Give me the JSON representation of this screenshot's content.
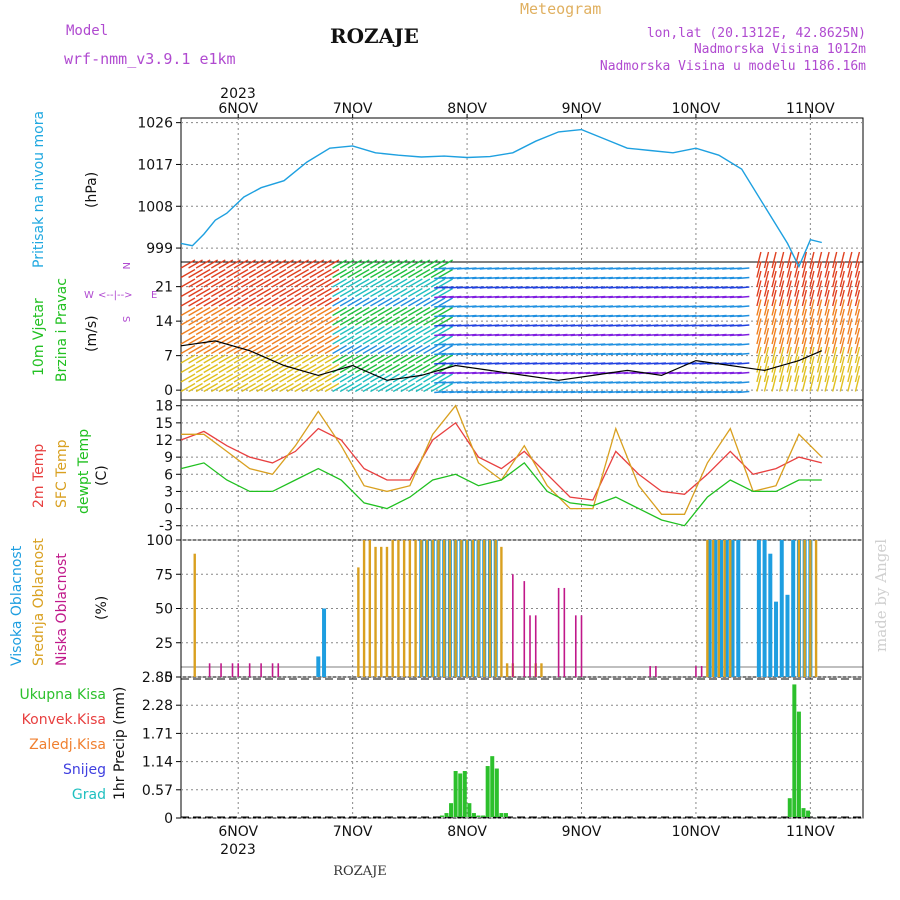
{
  "header": {
    "title": "ROZAJE",
    "subtitle": "Meteogram",
    "model_label": "Model",
    "model_name": "wrf-nmm_v3.9.1 e1km",
    "coords": "lon,lat (20.1312E, 42.8625N)",
    "elevation": "Nadmorska Visina 1012m",
    "model_elevation": "Nadmorska Visina u modelu 1186.16m",
    "footer": "ROZAJE",
    "watermark": "made by Angel"
  },
  "time_axis": {
    "year": "2023",
    "days": [
      "6NOV",
      "7NOV",
      "8NOV",
      "9NOV",
      "10NOV",
      "11NOV"
    ]
  },
  "colors": {
    "pressure": "#1ea0e0",
    "temp2m": "#e84040",
    "sfc_temp": "#d9a020",
    "dewpoint": "#20c020",
    "cloud_high": "#1e9ee0",
    "cloud_mid": "#d9a020",
    "cloud_low": "#c0188a",
    "precip_total": "#2cc02c",
    "precip_conv": "#e84040",
    "precip_frozen": "#f08030",
    "precip_snow": "#4040e0",
    "precip_graupel": "#20c0c0",
    "model_text": "#b04ad0"
  },
  "panels": {
    "pressure": {
      "label": "Pritisak na nivou mora",
      "unit": "(hPa)"
    },
    "wind": {
      "label1": "10m Vjetar",
      "label2": "Brzina i Pravac",
      "unit": "(m/s)",
      "compass": {
        "n": "N",
        "s": "S",
        "e": "E",
        "w": "W"
      }
    },
    "temp": {
      "label_2m": "2m Temp",
      "label_sfc": "SFC Temp",
      "label_dew": "dewpt Temp",
      "unit": "(C)"
    },
    "cloud": {
      "label_high": "Visoka Oblacnost",
      "label_mid": "Srednja Oblacnost",
      "label_low": "Niska Oblacnost",
      "unit": "(%)"
    },
    "precip": {
      "unit": "1hr Precip (mm)",
      "legend": [
        "Ukupna Kisa",
        "Konvek.Kisa",
        "Zaledj.Kisa",
        "Snijeg",
        "Grad"
      ]
    }
  },
  "chart_data": [
    {
      "type": "line",
      "title": "",
      "ylabel": "(hPa)",
      "yticks": [
        "999",
        "1008",
        "1017",
        "1026"
      ],
      "ylim": [
        996,
        1027
      ],
      "x_days": [
        0,
        0.1,
        0.2,
        0.3,
        0.4,
        0.55,
        0.7,
        0.9,
        1.1,
        1.3,
        1.5,
        1.7,
        1.9,
        2.1,
        2.3,
        2.5,
        2.7,
        2.9,
        3.1,
        3.3,
        3.5,
        3.7,
        3.9,
        4.1,
        4.3,
        4.5,
        4.7,
        4.9,
        5.1,
        5.3,
        5.4,
        5.5,
        5.6
      ],
      "series": [
        {
          "name": "Pritisak na nivou mora",
          "values": [
            1000,
            999.5,
            1002,
            1005,
            1006.5,
            1010,
            1012,
            1013.5,
            1017.5,
            1020.5,
            1021,
            1019.5,
            1019,
            1018.6,
            1018.8,
            1018.5,
            1018.7,
            1019.5,
            1022,
            1024,
            1024.5,
            1022.5,
            1020.5,
            1020,
            1019.5,
            1020.5,
            1019,
            1016,
            1008,
            1000,
            995,
            1000.8,
            1000.2
          ]
        }
      ]
    },
    {
      "type": "line",
      "title": "",
      "ylabel": "(m/s)",
      "yticks": [
        "0",
        "7",
        "14",
        "21"
      ],
      "ylim": [
        -2,
        26
      ],
      "x_days": [
        0,
        0.3,
        0.6,
        0.9,
        1.2,
        1.5,
        1.8,
        2.1,
        2.4,
        2.7,
        3.0,
        3.3,
        3.6,
        3.9,
        4.2,
        4.5,
        4.8,
        5.1,
        5.4,
        5.6
      ],
      "series": [
        {
          "name": "10m Vjetar",
          "values": [
            9,
            10,
            8,
            5,
            3,
            5,
            2,
            3,
            5,
            4,
            3,
            2,
            3,
            4,
            3,
            6,
            5,
            4,
            6,
            8
          ]
        }
      ]
    },
    {
      "type": "line",
      "title": "",
      "ylabel": "(C)",
      "yticks": [
        "-3",
        "0",
        "3",
        "6",
        "9",
        "12",
        "15",
        "18"
      ],
      "ylim": [
        -5.5,
        19
      ],
      "x_days": [
        0,
        0.2,
        0.4,
        0.6,
        0.8,
        1.0,
        1.2,
        1.4,
        1.6,
        1.8,
        2.0,
        2.2,
        2.4,
        2.6,
        2.8,
        3.0,
        3.2,
        3.4,
        3.6,
        3.8,
        4.0,
        4.2,
        4.4,
        4.6,
        4.8,
        5.0,
        5.2,
        5.4,
        5.6
      ],
      "series": [
        {
          "name": "2m Temp",
          "values": [
            12,
            13.5,
            11,
            9,
            8,
            10,
            14,
            12,
            7,
            5,
            5,
            12,
            15,
            9,
            7,
            10,
            6,
            2,
            1.5,
            10,
            6,
            3,
            2.5,
            6,
            10,
            6,
            7,
            9,
            8
          ]
        },
        {
          "name": "SFC Temp",
          "values": [
            13,
            13,
            10,
            7,
            6,
            11,
            17,
            11,
            4,
            3,
            4,
            13,
            18,
            8,
            5,
            11,
            4,
            0,
            0,
            14,
            4,
            -1,
            -1,
            8,
            14,
            3,
            4,
            13,
            9
          ]
        },
        {
          "name": "dewpt Temp",
          "values": [
            7,
            8,
            5,
            3,
            3,
            5,
            7,
            5,
            1,
            0,
            2,
            5,
            6,
            4,
            5,
            8,
            3,
            1,
            0.5,
            2,
            0,
            -2,
            -3,
            2,
            5,
            3,
            3,
            5,
            5
          ]
        }
      ]
    },
    {
      "type": "bar",
      "title": "",
      "ylabel": "(%)",
      "yticks": [
        "0",
        "25",
        "50",
        "75",
        "100"
      ],
      "ylim": [
        0,
        100
      ],
      "series": [
        {
          "name": "Visoka Oblacnost",
          "x_days": [
            1.2,
            1.25,
            2.1,
            2.15,
            2.2,
            2.25,
            2.3,
            2.35,
            2.4,
            2.45,
            2.5,
            2.55,
            2.6,
            2.65,
            2.7,
            2.75,
            4.62,
            4.67,
            4.72,
            4.77,
            4.82,
            4.87,
            5.05,
            5.1,
            5.15,
            5.2,
            5.25,
            5.3,
            5.35,
            5.4,
            5.45,
            5.5
          ],
          "values": [
            15,
            50,
            100,
            100,
            100,
            100,
            100,
            100,
            100,
            100,
            100,
            100,
            100,
            100,
            100,
            100,
            100,
            100,
            100,
            100,
            100,
            100,
            100,
            100,
            90,
            55,
            100,
            60,
            100,
            100,
            100,
            100
          ]
        },
        {
          "name": "Srednja Oblacnost",
          "x_days": [
            0.12,
            2.05,
            2.1,
            2.15,
            2.2,
            2.25,
            2.3,
            2.35,
            2.4,
            2.45,
            2.5,
            2.55,
            2.6,
            2.65,
            2.7,
            2.75,
            2.8,
            2.85,
            2.9,
            1.55,
            1.6,
            1.65,
            1.7,
            1.75,
            1.8,
            1.85,
            1.9,
            1.95,
            2.0,
            3.1,
            3.15,
            4.6,
            4.65,
            4.7,
            4.75,
            4.8,
            5.4,
            5.45,
            5.5,
            5.55
          ],
          "values": [
            90,
            100,
            100,
            100,
            100,
            100,
            100,
            100,
            100,
            100,
            100,
            100,
            100,
            100,
            100,
            100,
            95,
            10,
            10,
            80,
            100,
            100,
            95,
            95,
            95,
            100,
            100,
            100,
            100,
            10,
            10,
            100,
            100,
            100,
            100,
            100,
            100,
            100,
            100,
            100
          ]
        },
        {
          "name": "Niska Oblacnost",
          "x_days": [
            0.25,
            0.35,
            0.45,
            0.5,
            0.6,
            0.7,
            0.8,
            0.85,
            2.9,
            3.0,
            3.05,
            3.1,
            3.3,
            3.35,
            3.45,
            3.5,
            4.1,
            4.15,
            4.5,
            4.55
          ],
          "values": [
            10,
            10,
            10,
            10,
            10,
            10,
            10,
            10,
            75,
            70,
            45,
            45,
            65,
            65,
            45,
            45,
            8,
            8,
            8,
            8
          ]
        }
      ]
    },
    {
      "type": "bar",
      "title": "",
      "ylabel": "1hr Precip (mm)",
      "yticks": [
        "0",
        "0.57",
        "1.14",
        "1.71",
        "2.28",
        "2.85"
      ],
      "ylim": [
        0,
        2.85
      ],
      "series": [
        {
          "name": "Ukupna Kisa",
          "x_days": [
            2.28,
            2.32,
            2.36,
            2.4,
            2.44,
            2.48,
            2.52,
            2.56,
            2.6,
            2.64,
            2.68,
            2.72,
            2.76,
            2.8,
            2.84,
            5.32,
            5.36,
            5.4,
            5.44,
            5.48
          ],
          "values": [
            0.05,
            0.1,
            0.3,
            0.95,
            0.9,
            0.95,
            0.3,
            0.1,
            0.05,
            0.05,
            1.05,
            1.25,
            1.0,
            0.1,
            0.1,
            0.4,
            2.7,
            2.15,
            0.2,
            0.15
          ]
        }
      ]
    }
  ]
}
